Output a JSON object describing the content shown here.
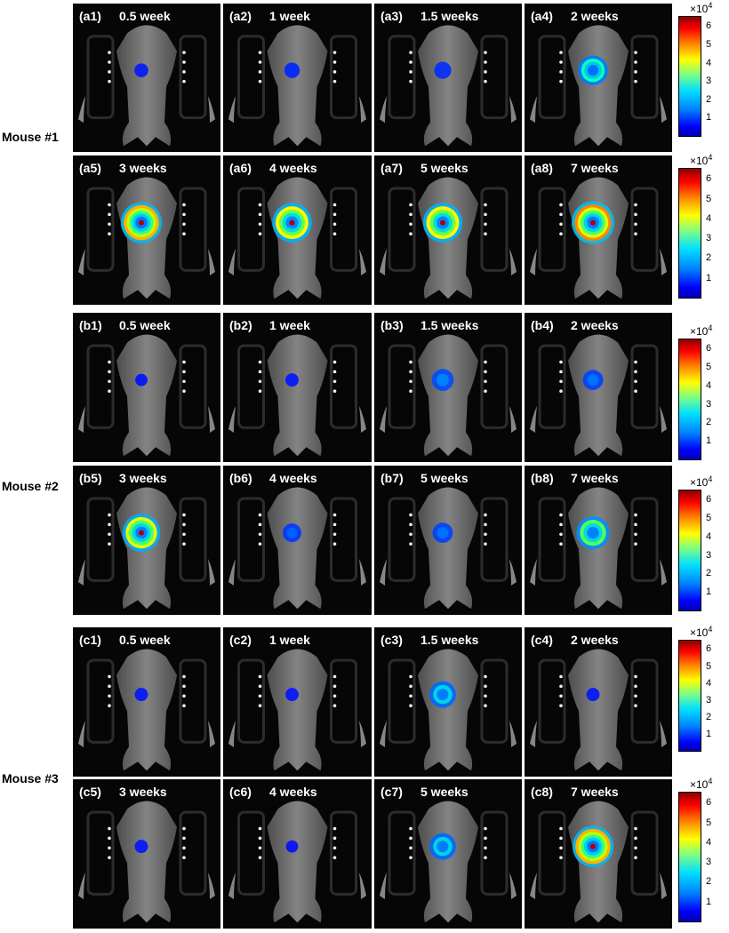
{
  "mice": [
    {
      "label": "Mouse #1",
      "rows": [
        [
          {
            "id": "(a1)",
            "time": "0.5 week"
          },
          {
            "id": "(a2)",
            "time": "1 week"
          },
          {
            "id": "(a3)",
            "time": "1.5 weeks"
          },
          {
            "id": "(a4)",
            "time": "2 weeks"
          }
        ],
        [
          {
            "id": "(a5)",
            "time": "3 weeks"
          },
          {
            "id": "(a6)",
            "time": "4 weeks"
          },
          {
            "id": "(a7)",
            "time": "5 weeks"
          },
          {
            "id": "(a8)",
            "time": "7 weeks"
          }
        ]
      ]
    },
    {
      "label": "Mouse #2",
      "rows": [
        [
          {
            "id": "(b1)",
            "time": "0.5 week"
          },
          {
            "id": "(b2)",
            "time": "1 week"
          },
          {
            "id": "(b3)",
            "time": "1.5 weeks"
          },
          {
            "id": "(b4)",
            "time": "2 weeks"
          }
        ],
        [
          {
            "id": "(b5)",
            "time": "3 weeks"
          },
          {
            "id": "(b6)",
            "time": "4 weeks"
          },
          {
            "id": "(b7)",
            "time": "5 weeks"
          },
          {
            "id": "(b8)",
            "time": "7 weeks"
          }
        ]
      ]
    },
    {
      "label": "Mouse #3",
      "rows": [
        [
          {
            "id": "(c1)",
            "time": "0.5 week"
          },
          {
            "id": "(c2)",
            "time": "1 week"
          },
          {
            "id": "(c3)",
            "time": "1.5 weeks"
          },
          {
            "id": "(c4)",
            "time": "2 weeks"
          }
        ],
        [
          {
            "id": "(c5)",
            "time": "3 weeks"
          },
          {
            "id": "(c6)",
            "time": "4 weeks"
          },
          {
            "id": "(c7)",
            "time": "5 weeks"
          },
          {
            "id": "(c8)",
            "time": "7 weeks"
          }
        ]
      ]
    }
  ],
  "colorbar": {
    "multiplier_base": "×10",
    "multiplier_exp": "4",
    "ticks": [
      "6",
      "5",
      "4",
      "3",
      "2",
      "1"
    ]
  },
  "signal_level": {
    "a1": 0.1,
    "a2": 0.15,
    "a3": 0.2,
    "a4": 0.6,
    "a5": 0.95,
    "a6": 0.9,
    "a7": 0.9,
    "a8": 1.0,
    "b1": 0.05,
    "b2": 0.08,
    "b3": 0.35,
    "b4": 0.3,
    "b5": 0.85,
    "b6": 0.25,
    "b7": 0.3,
    "b8": 0.7,
    "c1": 0.08,
    "c2": 0.08,
    "c3": 0.5,
    "c4": 0.08,
    "c5": 0.08,
    "c6": 0.05,
    "c7": 0.5,
    "c8": 0.95
  }
}
